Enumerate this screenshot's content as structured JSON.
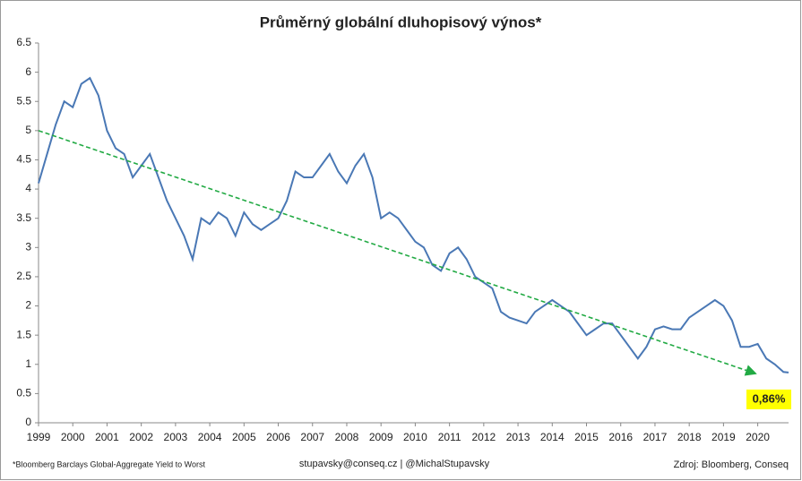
{
  "chart_data": {
    "type": "line",
    "title": "Průměrný globální dluhopisový výnos*",
    "x": [
      1999.0,
      1999.25,
      1999.5,
      1999.75,
      2000.0,
      2000.25,
      2000.5,
      2000.75,
      2001.0,
      2001.25,
      2001.5,
      2001.75,
      2002.0,
      2002.25,
      2002.5,
      2002.75,
      2003.0,
      2003.25,
      2003.5,
      2003.75,
      2004.0,
      2004.25,
      2004.5,
      2004.75,
      2005.0,
      2005.25,
      2005.5,
      2005.75,
      2006.0,
      2006.25,
      2006.5,
      2006.75,
      2007.0,
      2007.25,
      2007.5,
      2007.75,
      2008.0,
      2008.25,
      2008.5,
      2008.75,
      2009.0,
      2009.25,
      2009.5,
      2009.75,
      2010.0,
      2010.25,
      2010.5,
      2010.75,
      2011.0,
      2011.25,
      2011.5,
      2011.75,
      2012.0,
      2012.25,
      2012.5,
      2012.75,
      2013.0,
      2013.25,
      2013.5,
      2013.75,
      2014.0,
      2014.25,
      2014.5,
      2014.75,
      2015.0,
      2015.25,
      2015.5,
      2015.75,
      2016.0,
      2016.25,
      2016.5,
      2016.75,
      2017.0,
      2017.25,
      2017.5,
      2017.75,
      2018.0,
      2018.25,
      2018.5,
      2018.75,
      2019.0,
      2019.25,
      2019.5,
      2019.75,
      2020.0,
      2020.25,
      2020.5,
      2020.75,
      2020.9
    ],
    "series": [
      {
        "color": "#4a78b5",
        "values": [
          4.1,
          4.6,
          5.1,
          5.5,
          5.4,
          5.8,
          5.9,
          5.6,
          5.0,
          4.7,
          4.6,
          4.2,
          4.4,
          4.6,
          4.2,
          3.8,
          3.5,
          3.2,
          2.8,
          3.5,
          3.4,
          3.6,
          3.5,
          3.2,
          3.6,
          3.4,
          3.3,
          3.4,
          3.5,
          3.8,
          4.3,
          4.2,
          4.2,
          4.4,
          4.6,
          4.3,
          4.1,
          4.4,
          4.6,
          4.2,
          3.5,
          3.6,
          3.5,
          3.3,
          3.1,
          3.0,
          2.7,
          2.6,
          2.9,
          3.0,
          2.8,
          2.5,
          2.4,
          2.3,
          1.9,
          1.8,
          1.75,
          1.7,
          1.9,
          2.0,
          2.1,
          2.0,
          1.9,
          1.7,
          1.5,
          1.6,
          1.7,
          1.7,
          1.5,
          1.3,
          1.1,
          1.3,
          1.6,
          1.65,
          1.6,
          1.6,
          1.8,
          1.9,
          2.0,
          2.1,
          2.0,
          1.75,
          1.3,
          1.3,
          1.35,
          1.1,
          1.0,
          0.87,
          0.86
        ]
      }
    ],
    "trend": {
      "color": "#22aa44",
      "x": [
        1999.0,
        2019.9
      ],
      "values": [
        5.0,
        0.85
      ]
    },
    "annotation": "0,86%",
    "xlim": [
      1999,
      2020.9
    ],
    "xticks": [
      1999,
      2000,
      2001,
      2002,
      2003,
      2004,
      2005,
      2006,
      2007,
      2008,
      2009,
      2010,
      2011,
      2012,
      2013,
      2014,
      2015,
      2016,
      2017,
      2018,
      2019,
      2020
    ],
    "ylim": [
      0,
      6.5
    ],
    "yticks": [
      0,
      0.5,
      1,
      1.5,
      2,
      2.5,
      3,
      3.5,
      4,
      4.5,
      5,
      5.5,
      6,
      6.5
    ],
    "footnotes": [
      "*Bloomberg  Barclays Global-Aggregate  Yield to Worst",
      "stupavsky@conseq.cz  |  @MichalStupavsky",
      "Zdroj: Bloomberg, Conseq"
    ]
  }
}
